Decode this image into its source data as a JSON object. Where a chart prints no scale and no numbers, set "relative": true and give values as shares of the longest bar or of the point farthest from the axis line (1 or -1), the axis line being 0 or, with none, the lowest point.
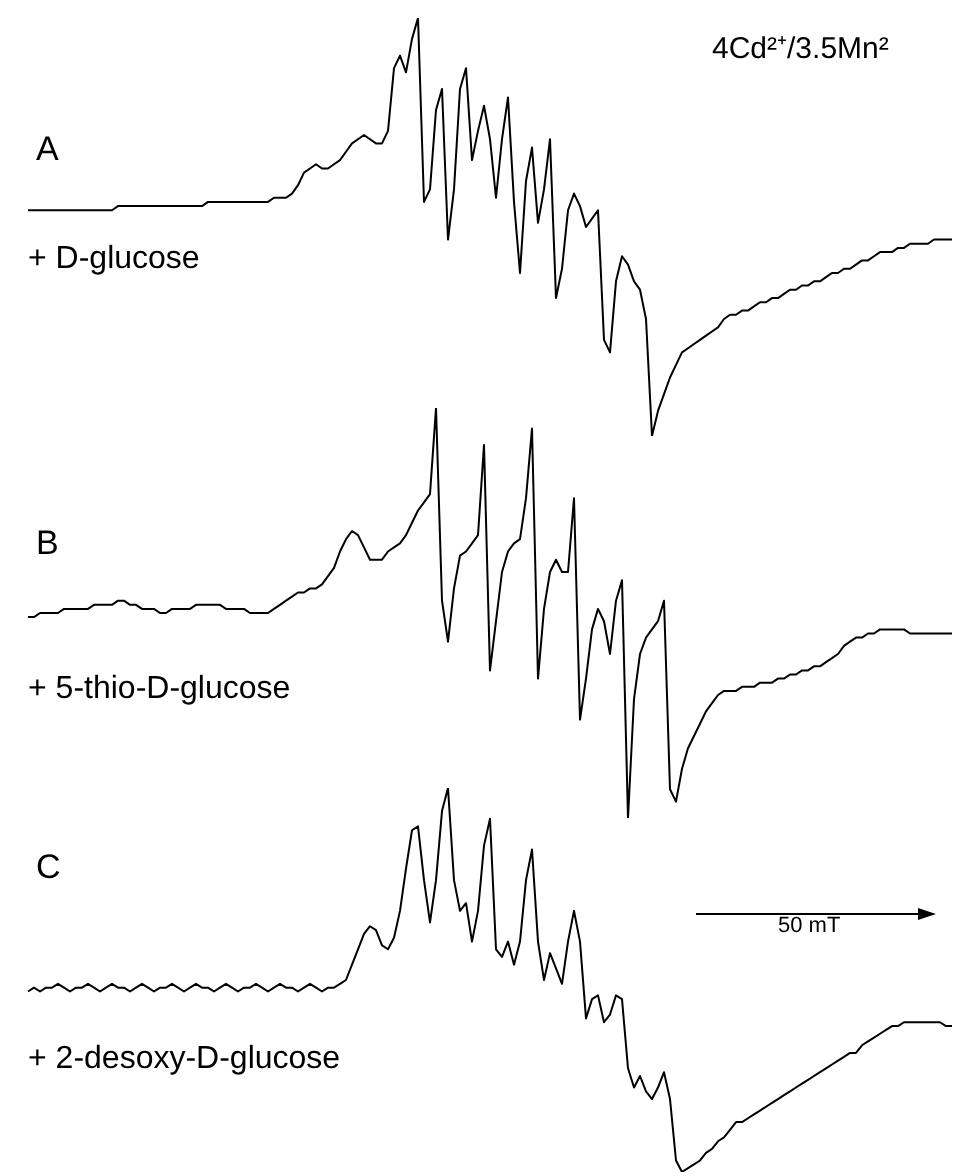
{
  "chart_data": [
    {
      "type": "line",
      "relative": true,
      "annotations": [
        "A",
        "+ D-glucose",
        "4Cd²⁺/3.5Mn²"
      ],
      "categories": [
        null,
        null,
        null,
        null,
        null,
        null,
        null,
        null,
        null,
        null,
        null,
        null,
        null,
        null,
        null,
        null,
        null,
        null,
        null,
        null,
        null,
        null,
        null,
        null,
        null,
        null,
        null,
        null,
        null,
        null,
        null,
        null,
        null,
        null,
        null,
        null,
        null,
        null,
        null,
        null,
        null,
        null,
        null,
        null,
        null,
        null,
        null,
        null,
        null,
        null,
        null,
        null,
        null,
        null,
        null,
        null,
        null,
        null,
        null,
        null,
        null,
        null,
        null,
        null,
        null,
        null,
        null,
        null,
        null,
        null,
        null,
        null,
        null,
        null,
        null,
        null,
        null,
        null,
        null,
        null,
        null,
        null,
        null,
        null,
        null,
        null,
        null,
        null,
        null,
        null,
        null,
        null,
        null,
        null,
        null,
        null,
        null,
        null,
        null,
        null,
        null,
        null,
        null,
        null,
        null,
        null,
        null,
        null,
        null,
        null,
        null,
        null,
        null,
        null,
        null,
        null,
        null,
        null,
        null,
        null,
        null,
        null,
        null,
        null,
        null,
        null,
        null,
        null,
        null,
        null,
        null,
        null,
        null,
        null,
        null,
        null,
        null,
        null,
        null,
        null,
        null,
        null,
        null,
        null,
        null,
        null,
        null,
        null,
        null,
        null,
        null,
        null,
        null,
        null,
        null
      ],
      "series": [
        {
          "color": "#000000",
          "values": [
            0.54,
            0.54,
            0.54,
            0.54,
            0.54,
            0.54,
            0.54,
            0.54,
            0.54,
            0.54,
            0.54,
            0.54,
            0.54,
            0.54,
            0.54,
            0.55,
            0.55,
            0.55,
            0.55,
            0.55,
            0.55,
            0.55,
            0.55,
            0.55,
            0.55,
            0.55,
            0.55,
            0.55,
            0.55,
            0.55,
            0.56,
            0.56,
            0.56,
            0.56,
            0.56,
            0.56,
            0.56,
            0.56,
            0.56,
            0.56,
            0.56,
            0.57,
            0.57,
            0.57,
            0.58,
            0.6,
            0.63,
            0.64,
            0.65,
            0.64,
            0.64,
            0.65,
            0.66,
            0.68,
            0.7,
            0.71,
            0.72,
            0.71,
            0.7,
            0.7,
            0.73,
            0.88,
            0.91,
            0.87,
            0.95,
            1.0,
            0.56,
            0.59,
            0.78,
            0.83,
            0.47,
            0.59,
            0.83,
            0.88,
            0.66,
            0.73,
            0.79,
            0.71,
            0.57,
            0.71,
            0.81,
            0.56,
            0.39,
            0.61,
            0.69,
            0.51,
            0.59,
            0.71,
            0.33,
            0.4,
            0.54,
            0.58,
            0.55,
            0.5,
            0.52,
            0.54,
            0.23,
            0.2,
            0.37,
            0.43,
            0.41,
            0.37,
            0.35,
            0.28,
            0.0,
            0.06,
            0.1,
            0.14,
            0.17,
            0.2,
            0.21,
            0.22,
            0.23,
            0.24,
            0.25,
            0.26,
            0.28,
            0.29,
            0.29,
            0.3,
            0.3,
            0.31,
            0.32,
            0.32,
            0.33,
            0.33,
            0.34,
            0.35,
            0.35,
            0.36,
            0.36,
            0.37,
            0.37,
            0.38,
            0.39,
            0.39,
            0.4,
            0.4,
            0.41,
            0.42,
            0.42,
            0.43,
            0.44,
            0.44,
            0.44,
            0.45,
            0.45,
            0.46,
            0.46,
            0.46,
            0.46,
            0.47,
            0.47,
            0.47,
            0.47
          ]
        }
      ]
    },
    {
      "type": "line",
      "relative": true,
      "annotations": [
        "B",
        "+ 5-thio-D-glucose"
      ],
      "categories": [
        null,
        null,
        null,
        null,
        null,
        null,
        null,
        null,
        null,
        null,
        null,
        null,
        null,
        null,
        null,
        null,
        null,
        null,
        null,
        null,
        null,
        null,
        null,
        null,
        null,
        null,
        null,
        null,
        null,
        null,
        null,
        null,
        null,
        null,
        null,
        null,
        null,
        null,
        null,
        null,
        null,
        null,
        null,
        null,
        null,
        null,
        null,
        null,
        null,
        null,
        null,
        null,
        null,
        null,
        null,
        null,
        null,
        null,
        null,
        null,
        null,
        null,
        null,
        null,
        null,
        null,
        null,
        null,
        null,
        null,
        null,
        null,
        null,
        null,
        null,
        null,
        null,
        null,
        null,
        null,
        null,
        null,
        null,
        null,
        null,
        null,
        null,
        null,
        null,
        null,
        null,
        null,
        null,
        null,
        null,
        null,
        null,
        null,
        null,
        null,
        null,
        null,
        null,
        null,
        null,
        null,
        null,
        null,
        null,
        null,
        null,
        null,
        null,
        null,
        null,
        null,
        null,
        null,
        null,
        null,
        null,
        null,
        null,
        null,
        null,
        null,
        null,
        null,
        null,
        null,
        null,
        null,
        null,
        null,
        null,
        null,
        null,
        null,
        null,
        null,
        null,
        null,
        null,
        null,
        null,
        null,
        null,
        null,
        null,
        null,
        null,
        null,
        null,
        null,
        null
      ],
      "series": [
        {
          "color": "#000000",
          "values": [
            0.49,
            0.49,
            0.5,
            0.5,
            0.5,
            0.5,
            0.51,
            0.51,
            0.51,
            0.51,
            0.51,
            0.52,
            0.52,
            0.52,
            0.52,
            0.53,
            0.53,
            0.52,
            0.52,
            0.51,
            0.51,
            0.51,
            0.5,
            0.5,
            0.51,
            0.51,
            0.51,
            0.51,
            0.52,
            0.52,
            0.52,
            0.52,
            0.52,
            0.51,
            0.51,
            0.51,
            0.51,
            0.5,
            0.5,
            0.5,
            0.5,
            0.51,
            0.52,
            0.53,
            0.54,
            0.55,
            0.55,
            0.56,
            0.56,
            0.57,
            0.59,
            0.61,
            0.65,
            0.68,
            0.7,
            0.69,
            0.66,
            0.63,
            0.63,
            0.63,
            0.65,
            0.66,
            0.67,
            0.69,
            0.72,
            0.75,
            0.77,
            0.79,
            1.0,
            0.53,
            0.43,
            0.56,
            0.64,
            0.65,
            0.67,
            0.69,
            0.91,
            0.36,
            0.48,
            0.6,
            0.65,
            0.67,
            0.68,
            0.78,
            0.95,
            0.34,
            0.51,
            0.6,
            0.63,
            0.6,
            0.6,
            0.78,
            0.24,
            0.34,
            0.46,
            0.51,
            0.48,
            0.4,
            0.53,
            0.58,
            0.0,
            0.29,
            0.4,
            0.44,
            0.46,
            0.48,
            0.53,
            0.07,
            0.04,
            0.12,
            0.17,
            0.2,
            0.23,
            0.26,
            0.28,
            0.3,
            0.31,
            0.31,
            0.31,
            0.32,
            0.32,
            0.32,
            0.33,
            0.33,
            0.33,
            0.34,
            0.34,
            0.35,
            0.35,
            0.36,
            0.36,
            0.37,
            0.37,
            0.38,
            0.39,
            0.4,
            0.42,
            0.43,
            0.44,
            0.44,
            0.45,
            0.45,
            0.46,
            0.46,
            0.46,
            0.46,
            0.46,
            0.45,
            0.45,
            0.45,
            0.45,
            0.45,
            0.45,
            0.45,
            0.45
          ]
        }
      ]
    },
    {
      "type": "line",
      "relative": true,
      "annotations": [
        "C",
        "+ 2-desoxy-D-glucose",
        "50 mT"
      ],
      "categories": [
        null,
        null,
        null,
        null,
        null,
        null,
        null,
        null,
        null,
        null,
        null,
        null,
        null,
        null,
        null,
        null,
        null,
        null,
        null,
        null,
        null,
        null,
        null,
        null,
        null,
        null,
        null,
        null,
        null,
        null,
        null,
        null,
        null,
        null,
        null,
        null,
        null,
        null,
        null,
        null,
        null,
        null,
        null,
        null,
        null,
        null,
        null,
        null,
        null,
        null,
        null,
        null,
        null,
        null,
        null,
        null,
        null,
        null,
        null,
        null,
        null,
        null,
        null,
        null,
        null,
        null,
        null,
        null,
        null,
        null,
        null,
        null,
        null,
        null,
        null,
        null,
        null,
        null,
        null,
        null,
        null,
        null,
        null,
        null,
        null,
        null,
        null,
        null,
        null,
        null,
        null,
        null,
        null,
        null,
        null,
        null,
        null,
        null,
        null,
        null,
        null,
        null,
        null,
        null,
        null,
        null,
        null,
        null,
        null,
        null,
        null,
        null,
        null,
        null,
        null,
        null,
        null,
        null,
        null,
        null,
        null,
        null,
        null,
        null,
        null,
        null,
        null,
        null,
        null,
        null,
        null,
        null,
        null,
        null,
        null,
        null,
        null,
        null,
        null,
        null,
        null,
        null,
        null,
        null,
        null,
        null,
        null,
        null,
        null,
        null,
        null,
        null,
        null,
        null,
        null
      ],
      "series": [
        {
          "color": "#000000",
          "values": [
            0.47,
            0.48,
            0.47,
            0.48,
            0.48,
            0.49,
            0.48,
            0.47,
            0.48,
            0.48,
            0.49,
            0.48,
            0.47,
            0.48,
            0.49,
            0.48,
            0.48,
            0.47,
            0.48,
            0.49,
            0.48,
            0.47,
            0.48,
            0.48,
            0.49,
            0.48,
            0.47,
            0.48,
            0.49,
            0.48,
            0.48,
            0.47,
            0.48,
            0.49,
            0.48,
            0.47,
            0.48,
            0.48,
            0.49,
            0.48,
            0.47,
            0.48,
            0.49,
            0.48,
            0.48,
            0.47,
            0.48,
            0.49,
            0.48,
            0.47,
            0.48,
            0.48,
            0.49,
            0.5,
            0.54,
            0.58,
            0.62,
            0.64,
            0.63,
            0.59,
            0.58,
            0.61,
            0.68,
            0.79,
            0.89,
            0.9,
            0.76,
            0.65,
            0.76,
            0.94,
            1.0,
            0.76,
            0.68,
            0.7,
            0.6,
            0.68,
            0.85,
            0.92,
            0.58,
            0.56,
            0.6,
            0.54,
            0.6,
            0.76,
            0.84,
            0.6,
            0.5,
            0.57,
            0.53,
            0.49,
            0.6,
            0.68,
            0.6,
            0.4,
            0.45,
            0.46,
            0.39,
            0.41,
            0.46,
            0.45,
            0.27,
            0.22,
            0.25,
            0.21,
            0.19,
            0.22,
            0.26,
            0.19,
            0.03,
            0.0,
            0.01,
            0.02,
            0.03,
            0.05,
            0.06,
            0.08,
            0.09,
            0.11,
            0.13,
            0.13,
            0.14,
            0.15,
            0.16,
            0.17,
            0.18,
            0.19,
            0.2,
            0.21,
            0.22,
            0.23,
            0.24,
            0.25,
            0.26,
            0.27,
            0.28,
            0.29,
            0.3,
            0.31,
            0.31,
            0.33,
            0.34,
            0.35,
            0.36,
            0.37,
            0.38,
            0.38,
            0.39,
            0.39,
            0.39,
            0.39,
            0.39,
            0.39,
            0.39,
            0.38,
            0.38
          ]
        }
      ]
    }
  ]
}
